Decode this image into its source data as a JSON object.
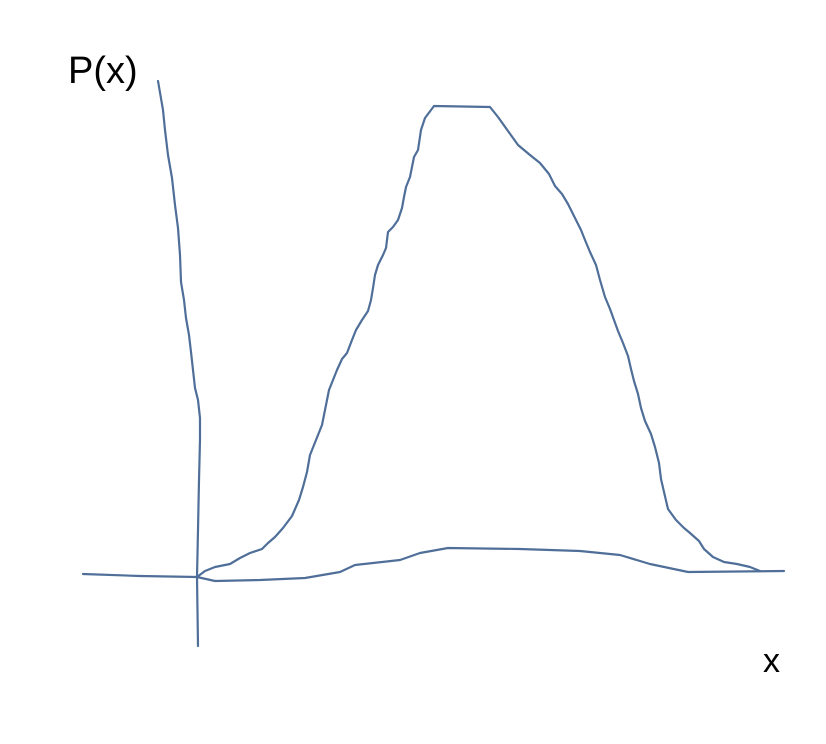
{
  "labels": {
    "y_axis": "P(x)",
    "x_axis": "x"
  },
  "colors": {
    "stroke": "#4f6f99",
    "text": "#000000",
    "background": "#ffffff"
  }
}
